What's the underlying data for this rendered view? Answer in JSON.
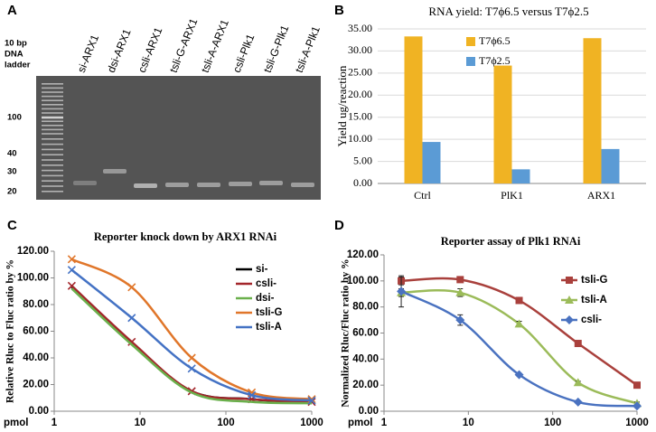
{
  "panels": [
    "A",
    "B",
    "C",
    "D"
  ],
  "gel": {
    "ladder_title": [
      "10 bp",
      "DNA",
      "ladder"
    ],
    "ladder_marks": [
      "100",
      "40",
      "30",
      "20"
    ],
    "lanes": [
      "si-ARX1",
      "dsi-ARX1",
      "csli-ARX1",
      "tsli-G-ARX1",
      "tsli-A-ARX1",
      "csli-Plk1",
      "tsli-G-Plk1",
      "tsli-A-Plk1"
    ]
  },
  "chart_data": [
    {
      "type": "bar",
      "title": "RNA yield: T7ϕ6.5 versus T7ϕ2.5",
      "y_label": "Yield ug/reaction",
      "categories": [
        "Ctrl",
        "PlK1",
        "ARX1"
      ],
      "series": [
        {
          "name": "T7ϕ6.5",
          "color": "#f0b323",
          "values": [
            33.3,
            26.7,
            32.9
          ]
        },
        {
          "name": "T7ϕ2.5",
          "color": "#5b9bd5",
          "values": [
            9.4,
            3.2,
            7.8
          ]
        }
      ],
      "ylim": [
        0,
        35
      ],
      "yticks": [
        {
          "value": 0,
          "label": "0.00"
        },
        {
          "value": 5,
          "label": "5.00"
        },
        {
          "value": 10,
          "label": "10.00"
        },
        {
          "value": 15,
          "label": "15.00"
        },
        {
          "value": 20,
          "label": "20.00"
        },
        {
          "value": 25,
          "label": "25.00"
        },
        {
          "value": 30,
          "label": "30.00"
        },
        {
          "value": 35,
          "label": "35.00"
        }
      ],
      "grid": true,
      "legend": "upper right"
    },
    {
      "type": "line",
      "title": "Reporter knock down by ARX1 RNAi",
      "y_label": "Relative Rluc to Fluc ratio by %",
      "x_label": "pmol",
      "x": [
        1.6,
        8,
        40,
        200,
        1000
      ],
      "xscale": "log",
      "xlim": [
        1,
        1000
      ],
      "xticks": [
        1,
        10,
        100,
        1000
      ],
      "ylim": [
        0,
        120
      ],
      "yticks": [
        {
          "value": 0,
          "label": "0.00"
        },
        {
          "value": 20,
          "label": "20.00"
        },
        {
          "value": 40,
          "label": "40.00"
        },
        {
          "value": 60,
          "label": "60.00"
        },
        {
          "value": 80,
          "label": "80.00"
        },
        {
          "value": 100,
          "label": "100.00"
        },
        {
          "value": 120,
          "label": "120.00"
        }
      ],
      "grid": false,
      "legend": "right",
      "series": [
        {
          "name": "si-",
          "color": "#000000",
          "values": [
            93,
            51,
            15,
            9,
            6
          ]
        },
        {
          "name": "csli-",
          "color": "#a3262b",
          "marker": "x",
          "values": [
            94,
            52,
            15,
            9,
            7
          ]
        },
        {
          "name": "dsi-",
          "color": "#6ab04c",
          "values": [
            92,
            50,
            14,
            7,
            6
          ]
        },
        {
          "name": "tsli-G",
          "color": "#e0762a",
          "marker": "x",
          "values": [
            114,
            93,
            40,
            14,
            9
          ]
        },
        {
          "name": "tsli-A",
          "color": "#4472c4",
          "marker": "x",
          "values": [
            106,
            70,
            32,
            12,
            8
          ]
        }
      ]
    },
    {
      "type": "line",
      "title": "Reporter assay of Plk1 RNAi",
      "y_label": "Normalized Rluc/Fluc ratio by %",
      "x_label": "pmol",
      "x": [
        1.6,
        8,
        40,
        200,
        1000
      ],
      "xscale": "log",
      "xlim": [
        1,
        1000
      ],
      "xticks": [
        1,
        10,
        100,
        1000
      ],
      "ylim": [
        0,
        120
      ],
      "yticks": [
        {
          "value": 0,
          "label": "0.00"
        },
        {
          "value": 20,
          "label": "20.00"
        },
        {
          "value": 40,
          "label": "40.00"
        },
        {
          "value": 60,
          "label": "60.00"
        },
        {
          "value": 80,
          "label": "80.00"
        },
        {
          "value": 100,
          "label": "100.00"
        },
        {
          "value": 120,
          "label": "120.00"
        }
      ],
      "grid": false,
      "legend": "right",
      "series": [
        {
          "name": "tsli-G",
          "color": "#a9403c",
          "marker": "square",
          "values": [
            100,
            101,
            85,
            52,
            20
          ],
          "errors": [
            3,
            2,
            2,
            1,
            1
          ]
        },
        {
          "name": "tsli-A",
          "color": "#9bbb59",
          "marker": "triangle",
          "values": [
            91,
            91,
            67,
            22,
            6
          ],
          "errors": [
            3,
            3,
            2,
            1,
            1
          ]
        },
        {
          "name": "csli-",
          "color": "#4a72c0",
          "marker": "diamond",
          "values": [
            92,
            70,
            28,
            7,
            4
          ],
          "errors": [
            12,
            4,
            1,
            1,
            1
          ]
        }
      ]
    }
  ]
}
